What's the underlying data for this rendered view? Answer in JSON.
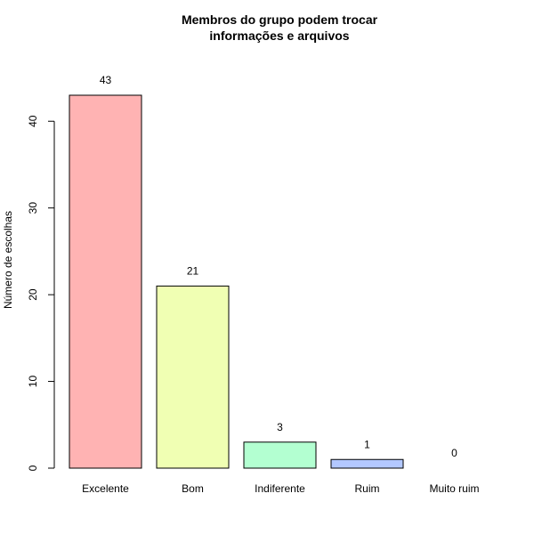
{
  "chart_data": {
    "type": "bar",
    "title_lines": [
      "Membros do grupo podem trocar",
      "informações e arquivos"
    ],
    "ylabel": "Número de escolhas",
    "xlabel": "",
    "categories": [
      "Excelente",
      "Bom",
      "Indiferente",
      "Ruim",
      "Muito ruim"
    ],
    "values": [
      43,
      21,
      3,
      1,
      0
    ],
    "data_labels": [
      "43",
      "21",
      "3",
      "1",
      "0"
    ],
    "colors": [
      "#FFB3B3",
      "#F0FFB3",
      "#B3FFD1",
      "#B3C8FF",
      "#FFB3F0"
    ],
    "yticks": [
      0,
      10,
      20,
      30,
      40
    ],
    "ylim": [
      0,
      43
    ],
    "grid": false,
    "legend": "none"
  }
}
